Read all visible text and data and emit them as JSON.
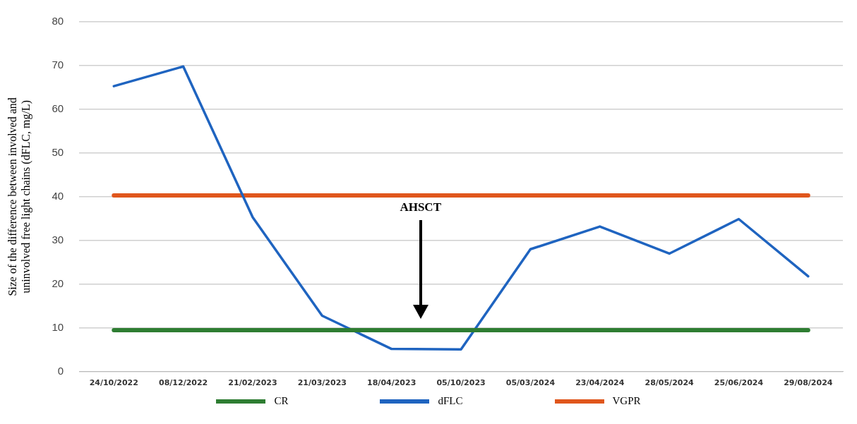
{
  "chart_data": {
    "type": "line",
    "ylabel": "Size of the difference between involved and uninvolved free light chains (dFLC, mg/L)",
    "categories": [
      "24/10/2022",
      "08/12/2022",
      "21/02/2023",
      "21/03/2023",
      "18/04/2023",
      "05/10/2023",
      "05/03/2024",
      "23/04/2024",
      "28/05/2024",
      "25/06/2024",
      "29/08/2024"
    ],
    "series": [
      {
        "name": "CR",
        "color": "#2e7d32",
        "values": [
          9.5,
          9.5,
          9.5,
          9.5,
          9.5,
          9.5,
          9.5,
          9.5,
          9.5,
          9.5,
          9.5
        ]
      },
      {
        "name": "dFLC",
        "color": "#1f64c0",
        "values": [
          65.3,
          69.8,
          35.3,
          12.8,
          5.2,
          5.1,
          28.0,
          33.2,
          27.0,
          34.9,
          21.8
        ]
      },
      {
        "name": "VGPR",
        "color": "#e0561c",
        "values": [
          40.3,
          40.3,
          40.3,
          40.3,
          40.3,
          40.3,
          40.3,
          40.3,
          40.3,
          40.3,
          40.3
        ]
      }
    ],
    "annotations": [
      "AHSCT"
    ],
    "ylim": [
      0,
      80
    ],
    "yticks": [
      0,
      10,
      20,
      30,
      40,
      50,
      60,
      70,
      80
    ],
    "grid": "y",
    "legend": "bottom",
    "marker": "none",
    "line_style": "solid"
  }
}
